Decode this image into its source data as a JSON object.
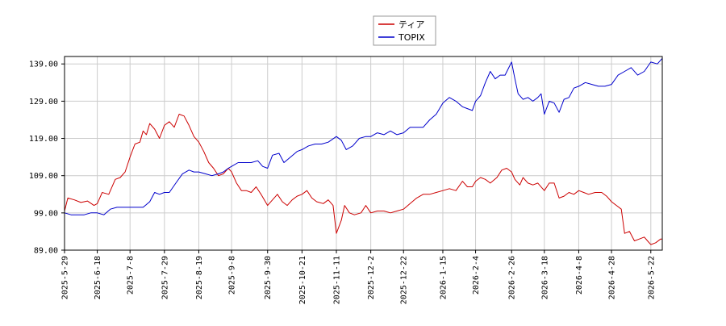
{
  "chart_data": {
    "type": "line",
    "title": "",
    "xlabel": "",
    "ylabel": "",
    "ylim": [
      89.0,
      141.0
    ],
    "y_ticks": [
      "89.00",
      "99.00",
      "109.00",
      "119.00",
      "129.00",
      "139.00"
    ],
    "y_tick_values": [
      89,
      99,
      109,
      119,
      129,
      139
    ],
    "x_ticks": [
      "2025-5-29",
      "2025-6-18",
      "2025-7-8",
      "2025-7-29",
      "2025-8-19",
      "2025-9-8",
      "2025-9-30",
      "2025-10-21",
      "2025-11-11",
      "2025-12-2",
      "2025-12-22",
      "2026-1-15",
      "2026-2-4",
      "2026-2-26",
      "2026-3-18",
      "2026-4-8",
      "2026-4-28",
      "2026-5-22"
    ],
    "grid": true,
    "legend_position": "top-center",
    "series": [
      {
        "name": "ティア",
        "color": "#cc0000",
        "points": [
          [
            "2025-5-29",
            99.5
          ],
          [
            "2025-5-31",
            103.0
          ],
          [
            "2025-6-4",
            102.5
          ],
          [
            "2025-6-8",
            101.8
          ],
          [
            "2025-6-12",
            102.2
          ],
          [
            "2025-6-16",
            101.0
          ],
          [
            "2025-6-18",
            101.5
          ],
          [
            "2025-6-21",
            104.5
          ],
          [
            "2025-6-25",
            104.0
          ],
          [
            "2025-6-29",
            108.0
          ],
          [
            "2025-7-2",
            108.5
          ],
          [
            "2025-7-5",
            110.0
          ],
          [
            "2025-7-8",
            114.0
          ],
          [
            "2025-7-11",
            117.5
          ],
          [
            "2025-7-14",
            118.0
          ],
          [
            "2025-7-16",
            121.0
          ],
          [
            "2025-7-18",
            120.0
          ],
          [
            "2025-7-20",
            123.0
          ],
          [
            "2025-7-23",
            121.5
          ],
          [
            "2025-7-26",
            119.0
          ],
          [
            "2025-7-29",
            122.5
          ],
          [
            "2025-8-1",
            123.5
          ],
          [
            "2025-8-4",
            122.0
          ],
          [
            "2025-8-7",
            125.5
          ],
          [
            "2025-8-10",
            125.0
          ],
          [
            "2025-8-13",
            122.5
          ],
          [
            "2025-8-16",
            119.5
          ],
          [
            "2025-8-19",
            118.0
          ],
          [
            "2025-8-22",
            115.5
          ],
          [
            "2025-8-25",
            112.5
          ],
          [
            "2025-8-28",
            111.0
          ],
          [
            "2025-8-31",
            109.0
          ],
          [
            "2025-9-3",
            109.5
          ],
          [
            "2025-9-6",
            111.0
          ],
          [
            "2025-9-8",
            110.0
          ],
          [
            "2025-9-11",
            107.0
          ],
          [
            "2025-9-14",
            105.0
          ],
          [
            "2025-9-17",
            105.0
          ],
          [
            "2025-9-20",
            104.5
          ],
          [
            "2025-9-23",
            106.0
          ],
          [
            "2025-9-26",
            104.0
          ],
          [
            "2025-9-30",
            101.0
          ],
          [
            "2025-10-3",
            102.5
          ],
          [
            "2025-10-6",
            104.0
          ],
          [
            "2025-10-9",
            102.0
          ],
          [
            "2025-10-12",
            101.0
          ],
          [
            "2025-10-15",
            102.5
          ],
          [
            "2025-10-18",
            103.5
          ],
          [
            "2025-10-21",
            104.0
          ],
          [
            "2025-10-24",
            105.0
          ],
          [
            "2025-10-27",
            103.0
          ],
          [
            "2025-10-30",
            102.0
          ],
          [
            "2025-11-3",
            101.5
          ],
          [
            "2025-11-6",
            102.5
          ],
          [
            "2025-11-9",
            101.0
          ],
          [
            "2025-11-11",
            93.5
          ],
          [
            "2025-11-14",
            97.0
          ],
          [
            "2025-11-16",
            101.0
          ],
          [
            "2025-11-19",
            99.0
          ],
          [
            "2025-11-22",
            98.5
          ],
          [
            "2025-11-26",
            99.0
          ],
          [
            "2025-11-29",
            101.0
          ],
          [
            "2025-12-2",
            99.0
          ],
          [
            "2025-12-6",
            99.5
          ],
          [
            "2025-12-10",
            99.5
          ],
          [
            "2025-12-14",
            99.0
          ],
          [
            "2025-12-18",
            99.5
          ],
          [
            "2025-12-22",
            100.0
          ],
          [
            "2025-12-26",
            101.5
          ],
          [
            "2025-12-30",
            103.0
          ],
          [
            "2026-1-3",
            104.0
          ],
          [
            "2026-1-7",
            104.0
          ],
          [
            "2026-1-11",
            104.5
          ],
          [
            "2026-1-15",
            105.0
          ],
          [
            "2026-1-19",
            105.5
          ],
          [
            "2026-1-23",
            105.0
          ],
          [
            "2026-1-27",
            107.5
          ],
          [
            "2026-1-30",
            106.0
          ],
          [
            "2026-2-2",
            106.0
          ],
          [
            "2026-2-4",
            107.5
          ],
          [
            "2026-2-7",
            108.5
          ],
          [
            "2026-2-10",
            108.0
          ],
          [
            "2026-2-13",
            107.0
          ],
          [
            "2026-2-17",
            108.5
          ],
          [
            "2026-2-20",
            110.5
          ],
          [
            "2026-2-23",
            111.0
          ],
          [
            "2026-2-26",
            110.0
          ],
          [
            "2026-2-28",
            108.0
          ],
          [
            "2026-3-3",
            106.5
          ],
          [
            "2026-3-5",
            108.5
          ],
          [
            "2026-3-8",
            107.0
          ],
          [
            "2026-3-11",
            106.5
          ],
          [
            "2026-3-14",
            107.0
          ],
          [
            "2026-3-18",
            105.0
          ],
          [
            "2026-3-21",
            107.0
          ],
          [
            "2026-3-24",
            107.0
          ],
          [
            "2026-3-27",
            103.0
          ],
          [
            "2026-3-30",
            103.5
          ],
          [
            "2026-4-2",
            104.5
          ],
          [
            "2026-4-5",
            104.0
          ],
          [
            "2026-4-8",
            105.0
          ],
          [
            "2026-4-11",
            104.5
          ],
          [
            "2026-4-14",
            104.0
          ],
          [
            "2026-4-18",
            104.5
          ],
          [
            "2026-4-22",
            104.5
          ],
          [
            "2026-4-25",
            103.5
          ],
          [
            "2026-4-28",
            102.0
          ],
          [
            "2026-5-1",
            101.0
          ],
          [
            "2026-5-4",
            100.0
          ],
          [
            "2026-5-6",
            93.5
          ],
          [
            "2026-5-9",
            94.0
          ],
          [
            "2026-5-12",
            91.5
          ],
          [
            "2026-5-15",
            92.0
          ],
          [
            "2026-5-18",
            92.5
          ],
          [
            "2026-5-20",
            91.5
          ],
          [
            "2026-5-22",
            90.5
          ],
          [
            "2026-5-25",
            91.0
          ],
          [
            "2026-5-28",
            92.0
          ],
          [
            "2026-5-29",
            92.0
          ]
        ]
      },
      {
        "name": "TOPIX",
        "color": "#0000cc",
        "points": [
          [
            "2025-5-29",
            99.0
          ],
          [
            "2025-6-2",
            98.5
          ],
          [
            "2025-6-6",
            98.5
          ],
          [
            "2025-6-10",
            98.5
          ],
          [
            "2025-6-14",
            99.0
          ],
          [
            "2025-6-18",
            99.0
          ],
          [
            "2025-6-22",
            98.5
          ],
          [
            "2025-6-26",
            100.0
          ],
          [
            "2025-6-30",
            100.5
          ],
          [
            "2025-7-4",
            100.5
          ],
          [
            "2025-7-8",
            100.5
          ],
          [
            "2025-7-12",
            100.5
          ],
          [
            "2025-7-16",
            100.5
          ],
          [
            "2025-7-20",
            102.0
          ],
          [
            "2025-7-23",
            104.5
          ],
          [
            "2025-7-26",
            104.0
          ],
          [
            "2025-7-29",
            104.5
          ],
          [
            "2025-8-1",
            104.5
          ],
          [
            "2025-8-5",
            107.0
          ],
          [
            "2025-8-9",
            109.5
          ],
          [
            "2025-8-13",
            110.5
          ],
          [
            "2025-8-16",
            110.0
          ],
          [
            "2025-8-19",
            110.0
          ],
          [
            "2025-8-23",
            109.5
          ],
          [
            "2025-8-27",
            109.0
          ],
          [
            "2025-8-31",
            109.5
          ],
          [
            "2025-9-3",
            110.0
          ],
          [
            "2025-9-6",
            111.0
          ],
          [
            "2025-9-8",
            111.5
          ],
          [
            "2025-9-12",
            112.5
          ],
          [
            "2025-9-16",
            112.5
          ],
          [
            "2025-9-20",
            112.5
          ],
          [
            "2025-9-24",
            113.0
          ],
          [
            "2025-9-27",
            111.5
          ],
          [
            "2025-9-30",
            111.0
          ],
          [
            "2025-10-3",
            114.5
          ],
          [
            "2025-10-7",
            115.0
          ],
          [
            "2025-10-10",
            112.5
          ],
          [
            "2025-10-14",
            114.0
          ],
          [
            "2025-10-18",
            115.5
          ],
          [
            "2025-10-21",
            116.0
          ],
          [
            "2025-10-25",
            117.0
          ],
          [
            "2025-10-29",
            117.5
          ],
          [
            "2025-11-2",
            117.5
          ],
          [
            "2025-11-6",
            118.0
          ],
          [
            "2025-11-11",
            119.5
          ],
          [
            "2025-11-14",
            118.5
          ],
          [
            "2025-11-17",
            116.0
          ],
          [
            "2025-11-21",
            117.0
          ],
          [
            "2025-11-25",
            119.0
          ],
          [
            "2025-11-29",
            119.5
          ],
          [
            "2025-12-2",
            119.5
          ],
          [
            "2025-12-6",
            120.5
          ],
          [
            "2025-12-10",
            120.0
          ],
          [
            "2025-12-14",
            121.0
          ],
          [
            "2025-12-18",
            120.0
          ],
          [
            "2025-12-22",
            120.5
          ],
          [
            "2025-12-26",
            122.0
          ],
          [
            "2025-12-30",
            122.0
          ],
          [
            "2026-1-3",
            122.0
          ],
          [
            "2026-1-7",
            124.0
          ],
          [
            "2026-1-11",
            125.5
          ],
          [
            "2026-1-15",
            128.5
          ],
          [
            "2026-1-19",
            130.0
          ],
          [
            "2026-1-23",
            129.0
          ],
          [
            "2026-1-27",
            127.5
          ],
          [
            "2026-1-30",
            127.0
          ],
          [
            "2026-2-2",
            126.5
          ],
          [
            "2026-2-4",
            129.0
          ],
          [
            "2026-2-7",
            130.5
          ],
          [
            "2026-2-10",
            134.0
          ],
          [
            "2026-2-13",
            137.0
          ],
          [
            "2026-2-16",
            135.0
          ],
          [
            "2026-2-19",
            136.0
          ],
          [
            "2026-2-22",
            136.0
          ],
          [
            "2026-2-26",
            139.5
          ],
          [
            "2026-2-28",
            135.0
          ],
          [
            "2026-3-2",
            131.0
          ],
          [
            "2026-3-5",
            129.5
          ],
          [
            "2026-3-8",
            130.0
          ],
          [
            "2026-3-11",
            129.0
          ],
          [
            "2026-3-14",
            130.0
          ],
          [
            "2026-3-16",
            131.0
          ],
          [
            "2026-3-18",
            125.5
          ],
          [
            "2026-3-21",
            129.0
          ],
          [
            "2026-3-24",
            128.5
          ],
          [
            "2026-3-27",
            126.0
          ],
          [
            "2026-3-30",
            129.5
          ],
          [
            "2026-4-2",
            130.0
          ],
          [
            "2026-4-5",
            132.5
          ],
          [
            "2026-4-8",
            133.0
          ],
          [
            "2026-4-12",
            134.0
          ],
          [
            "2026-4-16",
            133.5
          ],
          [
            "2026-4-20",
            133.0
          ],
          [
            "2026-4-24",
            133.0
          ],
          [
            "2026-4-28",
            133.5
          ],
          [
            "2026-5-2",
            136.0
          ],
          [
            "2026-5-6",
            137.0
          ],
          [
            "2026-5-10",
            138.0
          ],
          [
            "2026-5-14",
            136.0
          ],
          [
            "2026-5-18",
            137.0
          ],
          [
            "2026-5-22",
            139.5
          ],
          [
            "2026-5-26",
            139.0
          ],
          [
            "2026-5-29",
            140.5
          ]
        ]
      }
    ]
  }
}
